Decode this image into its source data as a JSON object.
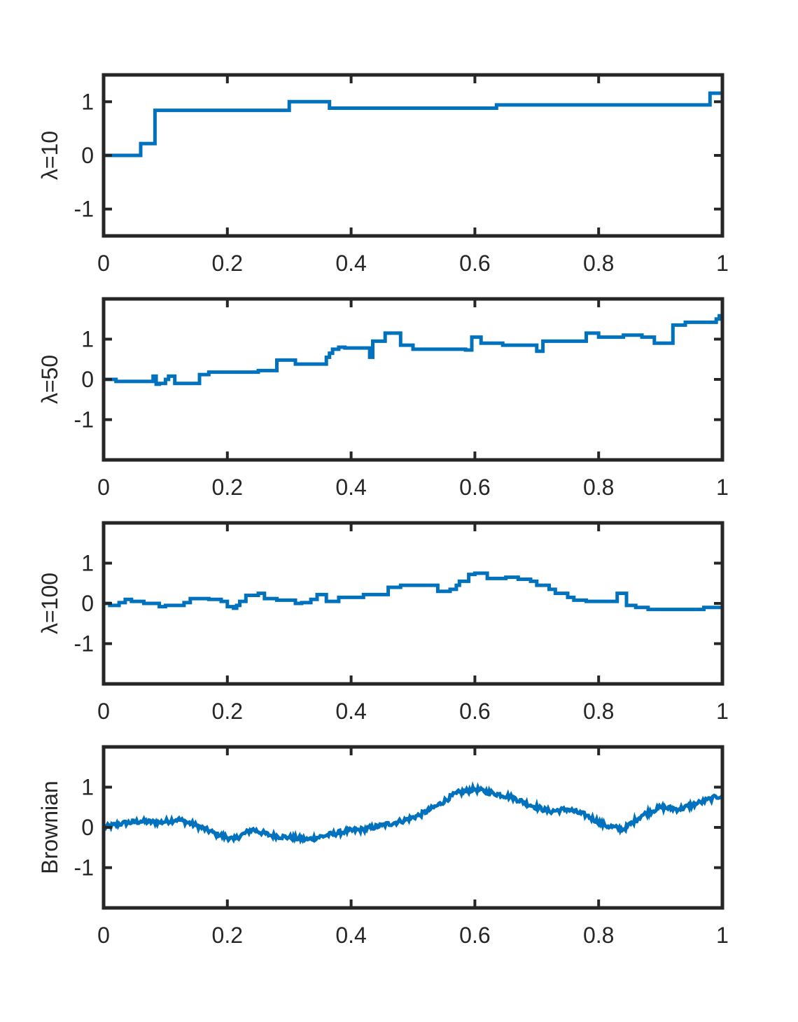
{
  "chart_data": [
    {
      "type": "line",
      "title": "",
      "xlabel": "",
      "ylabel": "λ=10",
      "xlim": [
        0,
        1
      ],
      "ylim": [
        -1.5,
        1.5
      ],
      "xticks": [
        "0",
        "0.2",
        "0.4",
        "0.6",
        "0.8",
        "1"
      ],
      "yticks": [
        "-1",
        "0",
        "1"
      ],
      "grid": false,
      "color": "#0072BD",
      "step": true,
      "series": [
        {
          "x": [
            0,
            0.06,
            0.083,
            0.3,
            0.365,
            0.635,
            0.98,
            1.0
          ],
          "values": [
            0,
            0.22,
            0.84,
            1.0,
            0.88,
            0.94,
            1.16,
            1.16
          ]
        }
      ]
    },
    {
      "type": "line",
      "title": "",
      "xlabel": "",
      "ylabel": "λ=50",
      "xlim": [
        0,
        1
      ],
      "ylim": [
        -2,
        2
      ],
      "xticks": [
        "0",
        "0.2",
        "0.4",
        "0.6",
        "0.8",
        "1"
      ],
      "yticks": [
        "-1",
        "0",
        "1"
      ],
      "grid": false,
      "color": "#0072BD",
      "step": true,
      "series": [
        {
          "x": [
            0,
            0.02,
            0.08,
            0.085,
            0.09,
            0.1,
            0.105,
            0.115,
            0.155,
            0.17,
            0.25,
            0.28,
            0.31,
            0.36,
            0.365,
            0.37,
            0.38,
            0.39,
            0.43,
            0.435,
            0.455,
            0.48,
            0.5,
            0.585,
            0.595,
            0.61,
            0.645,
            0.7,
            0.71,
            0.78,
            0.8,
            0.84,
            0.87,
            0.89,
            0.92,
            0.94,
            0.99,
            0.995
          ],
          "values": [
            0,
            -0.05,
            0.08,
            -0.12,
            -0.1,
            0.0,
            0.08,
            -0.1,
            0.12,
            0.18,
            0.22,
            0.48,
            0.38,
            0.55,
            0.65,
            0.75,
            0.8,
            0.78,
            0.55,
            0.95,
            1.15,
            0.85,
            0.75,
            0.73,
            1.05,
            0.9,
            0.85,
            0.7,
            0.95,
            1.15,
            1.05,
            1.1,
            1.05,
            0.9,
            1.35,
            1.42,
            1.5,
            1.58
          ]
        }
      ]
    },
    {
      "type": "line",
      "title": "",
      "xlabel": "",
      "ylabel": "λ=100",
      "xlim": [
        0,
        1
      ],
      "ylim": [
        -2,
        2
      ],
      "xticks": [
        "0",
        "0.2",
        "0.4",
        "0.6",
        "0.8",
        "1"
      ],
      "yticks": [
        "-1",
        "0",
        "1"
      ],
      "grid": false,
      "color": "#0072BD",
      "step": true,
      "series": [
        {
          "x": [
            0,
            0.01,
            0.025,
            0.035,
            0.045,
            0.065,
            0.09,
            0.1,
            0.13,
            0.14,
            0.17,
            0.19,
            0.2,
            0.21,
            0.215,
            0.22,
            0.23,
            0.25,
            0.26,
            0.28,
            0.31,
            0.32,
            0.335,
            0.345,
            0.36,
            0.38,
            0.42,
            0.46,
            0.48,
            0.52,
            0.54,
            0.56,
            0.57,
            0.575,
            0.59,
            0.6,
            0.62,
            0.65,
            0.67,
            0.69,
            0.7,
            0.72,
            0.73,
            0.75,
            0.76,
            0.78,
            0.83,
            0.845,
            0.86,
            0.88,
            0.9,
            0.97,
            1.0
          ],
          "values": [
            0,
            -0.05,
            0.02,
            0.1,
            0.05,
            0.0,
            -0.08,
            -0.05,
            0.02,
            0.12,
            0.1,
            0.05,
            -0.08,
            -0.12,
            -0.05,
            0.05,
            0.2,
            0.25,
            0.12,
            0.08,
            0.0,
            0.02,
            0.1,
            0.22,
            0.05,
            0.15,
            0.22,
            0.4,
            0.45,
            0.45,
            0.3,
            0.35,
            0.45,
            0.55,
            0.72,
            0.75,
            0.62,
            0.65,
            0.6,
            0.55,
            0.45,
            0.35,
            0.25,
            0.15,
            0.08,
            0.05,
            0.25,
            -0.05,
            -0.1,
            -0.15,
            -0.15,
            -0.1,
            -0.05
          ]
        }
      ]
    },
    {
      "type": "line",
      "title": "",
      "xlabel": "",
      "ylabel": "Brownian",
      "xlim": [
        0,
        1
      ],
      "ylim": [
        -2,
        2
      ],
      "xticks": [
        "0",
        "0.2",
        "0.4",
        "0.6",
        "0.8",
        "1"
      ],
      "yticks": [
        "-1",
        "0",
        "1"
      ],
      "grid": false,
      "color": "#0072BD",
      "step": false,
      "noisy": true,
      "series": [
        {
          "x": [
            0,
            0.03,
            0.06,
            0.09,
            0.12,
            0.15,
            0.18,
            0.21,
            0.24,
            0.27,
            0.3,
            0.33,
            0.36,
            0.39,
            0.42,
            0.45,
            0.48,
            0.51,
            0.54,
            0.57,
            0.6,
            0.63,
            0.66,
            0.69,
            0.72,
            0.75,
            0.78,
            0.81,
            0.84,
            0.87,
            0.9,
            0.93,
            0.96,
            1.0
          ],
          "values": [
            0,
            0.1,
            0.15,
            0.12,
            0.2,
            0.05,
            -0.15,
            -0.3,
            -0.05,
            -0.2,
            -0.25,
            -0.3,
            -0.2,
            -0.1,
            -0.05,
            0.05,
            0.15,
            0.3,
            0.55,
            0.85,
            0.95,
            0.85,
            0.75,
            0.55,
            0.4,
            0.45,
            0.3,
            0.05,
            -0.05,
            0.3,
            0.5,
            0.45,
            0.6,
            0.8
          ]
        }
      ]
    }
  ]
}
